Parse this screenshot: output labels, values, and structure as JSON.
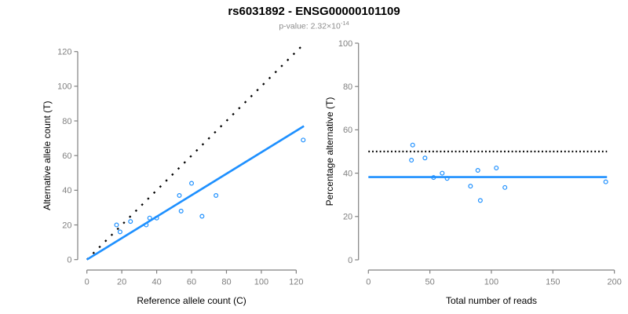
{
  "title": "rs6031892 - ENSG00000101109",
  "subtitle": {
    "prefix": "p-value: ",
    "mantissa": "2.32×10",
    "exponent": "-14"
  },
  "colors": {
    "point": "#1E90FF",
    "fit_line": "#1E90FF",
    "dotted_line": "#000000",
    "axis": "#808080",
    "tick_label": "#808080",
    "axis_title": "#000000",
    "title": "#000000",
    "subtitle": "#8c8c8c",
    "background": "#ffffff"
  },
  "chart_data": [
    {
      "type": "scatter",
      "panel": "allele-counts",
      "xlabel": "Reference allele count (C)",
      "ylabel": "Alternative allele count (T)",
      "xlim": [
        0,
        130
      ],
      "ylim": [
        0,
        125
      ],
      "x_ticks": [
        0,
        20,
        40,
        60,
        80,
        100,
        120
      ],
      "y_ticks": [
        0,
        20,
        40,
        60,
        80,
        100,
        120
      ],
      "grid": false,
      "legend": false,
      "points": [
        [
          17,
          20
        ],
        [
          19,
          16
        ],
        [
          25,
          22
        ],
        [
          34,
          20
        ],
        [
          36,
          24
        ],
        [
          40,
          24
        ],
        [
          53,
          37
        ],
        [
          54,
          28
        ],
        [
          60,
          44
        ],
        [
          66,
          25
        ],
        [
          74,
          37
        ],
        [
          124,
          69
        ]
      ],
      "lines": [
        {
          "name": "identity-line",
          "style": "dotted",
          "color": "#000000",
          "from": [
            0,
            0
          ],
          "to": [
            124.6,
            124.6
          ],
          "dash": "2.4 8.5",
          "width": 2.3
        },
        {
          "name": "fit-line",
          "style": "solid",
          "color": "#1E90FF",
          "from": [
            0,
            0
          ],
          "to": [
            124.4,
            77
          ],
          "dash": "",
          "width": 2.6
        }
      ]
    },
    {
      "type": "scatter",
      "panel": "percentage-alternative",
      "xlabel": "Total number of reads",
      "ylabel": "Percentage alternative (T)",
      "xlim": [
        0,
        200
      ],
      "ylim": [
        0,
        100
      ],
      "x_ticks": [
        0,
        50,
        100,
        150,
        200
      ],
      "y_ticks": [
        0,
        20,
        40,
        60,
        80,
        100
      ],
      "grid": false,
      "legend": false,
      "points": [
        [
          35,
          46
        ],
        [
          36,
          53
        ],
        [
          46,
          47
        ],
        [
          53,
          38
        ],
        [
          60,
          40
        ],
        [
          64,
          37.6
        ],
        [
          83,
          34
        ],
        [
          89,
          41.3
        ],
        [
          91,
          27.4
        ],
        [
          104,
          42.4
        ],
        [
          111,
          33.4
        ],
        [
          193,
          36
        ]
      ],
      "lines": [
        {
          "name": "expected-50pct-line",
          "style": "dotted",
          "color": "#000000",
          "from": [
            0,
            50
          ],
          "to": [
            194,
            50
          ],
          "dash": "1.8 3",
          "width": 2.2
        },
        {
          "name": "observed-ratio-line",
          "style": "solid",
          "color": "#1E90FF",
          "from": [
            0,
            38.2
          ],
          "to": [
            194,
            38.2
          ],
          "dash": "",
          "width": 2.6
        }
      ]
    }
  ]
}
